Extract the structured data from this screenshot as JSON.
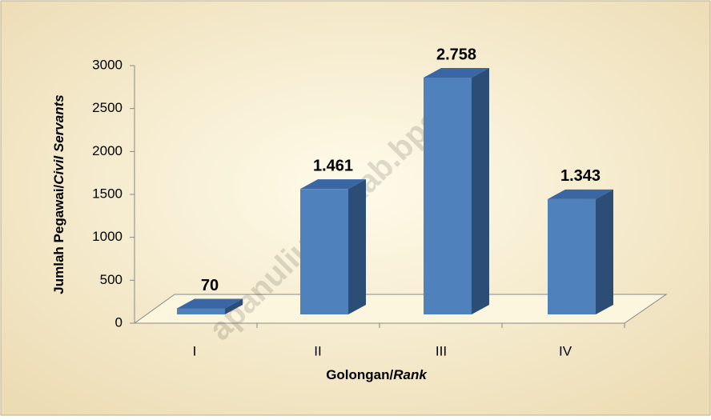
{
  "chart_data": {
    "type": "bar3d",
    "ylabel": [
      "Jumlah Pegawai/",
      "Civil Servants"
    ],
    "xlabel": [
      "Golongan/",
      "Rank"
    ],
    "categories": [
      "I",
      "II",
      "III",
      "IV"
    ],
    "values": [
      70,
      1461,
      2758,
      1343
    ],
    "value_labels": [
      "70",
      "1.461",
      "2.758",
      "1.343"
    ],
    "color": "#4f81bd",
    "ylim": [
      0,
      3000
    ],
    "yticks": [
      0,
      500,
      1000,
      1500,
      2000,
      2500,
      3000
    ],
    "watermark": "apanuliutarakab.bps.g"
  }
}
